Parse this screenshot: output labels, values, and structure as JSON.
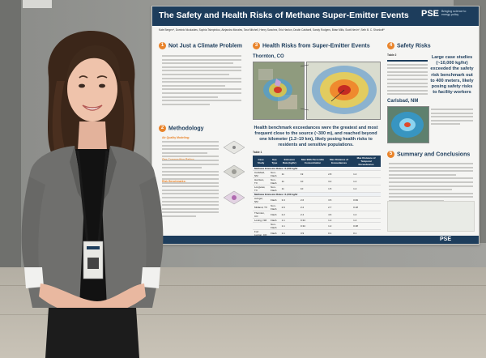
{
  "poster": {
    "title": "The Safety and Health Risks of Methane Super-Emitter Events",
    "logo": "PSE",
    "tagline": "Bringing science to energy policy",
    "authors": "Kate Bergen*, Dominic Nicolaides, Sophia Tsimpirdou, Alejandra Morales, Tara Mitchell, Henry Sanchez, Eric Hanlon, Dustin Caldwell, Sandy Rodgers, Brian Mills, Scott Nevin*, Seth B. C. Shonkoff*",
    "footer_logo": "PSE",
    "sections": {
      "s1": {
        "num": "1",
        "title": "Not Just a Climate Problem"
      },
      "s2": {
        "num": "2",
        "title": "Methodology"
      },
      "s3": {
        "num": "3",
        "title": "Health Risks from Super-Emitter Events"
      },
      "s4": {
        "num": "4",
        "title": "Safety Risks"
      },
      "s5": {
        "num": "5",
        "title": "Summary and Conclusions"
      }
    },
    "thornton": "Thornton, CO",
    "carlsbad": "Carlsbad, NM",
    "finding": "Health benchmark exceedances were the greatest and most frequent close to the source (~300 m), and reached beyond one kilometer (1.2–19 km), likely posing health risks to residents and sensitive populations.",
    "safety_finding": "Large case studies (~10,000 kg/hr) exceeded the safety risk benchmark out to 400 meters, likely posing safety risks to facility workers",
    "table_label": "Table 1",
    "table2_label": "Table 2",
    "methodology_items": {
      "m1": "Air Quality Modeling:",
      "m2": "Gas Composition Ratios:",
      "m3": "Risk Benchmarks:"
    },
    "table": {
      "headers": [
        "Case Study",
        "Gas Type",
        "Emission Rate (kg/hr)",
        "Max 99th Percentile Concentration",
        "Max Distance of Exceedances",
        "Max Distance of Temporal Exceedances"
      ],
      "group1": "Methane Emission Rates <1,000 kg/hr",
      "group2": "Methane Emission Rates >1,000 kg/hr",
      "rows": [
        [
          "Carlsbad, NM",
          "Non-Flash",
          "11",
          "19",
          "2.8",
          "1.2"
        ],
        [
          "Harrison, TX",
          "Non-Flash",
          "11",
          "10",
          "3.2",
          "1.4"
        ],
        [
          "Longview, TX",
          "Non-Flash",
          "11",
          "10",
          "1.5",
          "1.2"
        ],
        [
          "Avinger, NM",
          "Flash",
          "3.3",
          "2.6",
          "3.5",
          "0.99"
        ],
        [
          "Midland, TX",
          "Non-Flash",
          "2.6",
          "2.2",
          "2.7",
          "0.18"
        ],
        [
          "Thornton, CO",
          "Flash",
          "2.2",
          "2.4",
          "4.6",
          "1.4"
        ],
        [
          "Loving, NM",
          "Flash",
          "1.1",
          "0.34",
          "1.2",
          "1.4"
        ],
        [
          "",
          "Non-Flash",
          "1.1",
          "0.34",
          "1.2",
          "0.38"
        ],
        [
          "Fort Lupton, CO",
          "Flash",
          "1.1",
          "3.9",
          "0.1",
          "0.1"
        ]
      ]
    }
  }
}
